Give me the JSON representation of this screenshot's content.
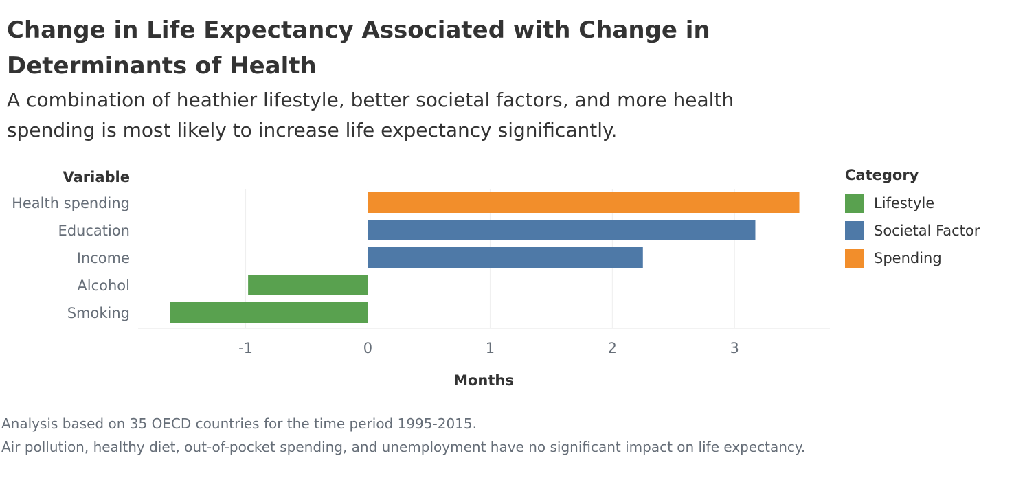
{
  "title": "Change in Life Expectancy Associated with Change in Determinants of Health",
  "subtitle": "A combination of heathier lifestyle, better societal factors, and more health spending is most likely to increase life expectancy significantly.",
  "legend": {
    "title": "Category",
    "items": [
      {
        "label": "Lifestyle",
        "color": "#59a14f"
      },
      {
        "label": "Societal Factor",
        "color": "#4e79a7"
      },
      {
        "label": "Spending",
        "color": "#f28e2b"
      }
    ]
  },
  "chart_data": {
    "type": "bar",
    "orientation": "horizontal",
    "row_header": "Variable",
    "xlabel": "Months",
    "xlim": [
      -1.88,
      3.78
    ],
    "xticks": [
      -1,
      0,
      1,
      2,
      3
    ],
    "grid": true,
    "legend_position": "right",
    "categories": [
      "Health spending",
      "Education",
      "Income",
      "Alcohol",
      "Smoking"
    ],
    "values": [
      3.53,
      3.17,
      2.25,
      -0.98,
      -1.62
    ],
    "category_group": [
      "Spending",
      "Societal Factor",
      "Societal Factor",
      "Lifestyle",
      "Lifestyle"
    ]
  },
  "footer": {
    "lines": [
      "Analysis based on 35 OECD countries for the time period 1995-2015.",
      "Air pollution, healthy diet, out-of-pocket spending, and unemployment have no significant impact on life expectancy."
    ]
  }
}
